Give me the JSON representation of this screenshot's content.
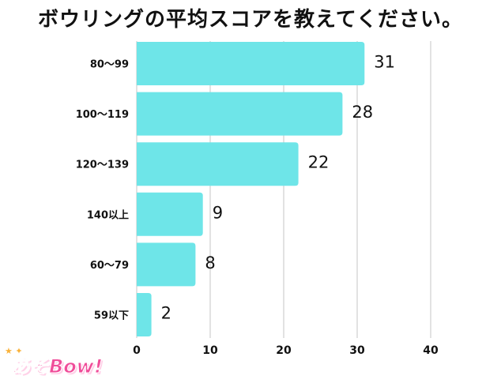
{
  "title": "ボウリングの平均スコアを教えてください。",
  "logo": {
    "text": "あそBow!",
    "stars": "★ ✦"
  },
  "colors": {
    "bar": "#6ee5e8",
    "grid": "#d9d9d9",
    "text": "#111111"
  },
  "chart_data": {
    "type": "bar",
    "orientation": "horizontal",
    "title": "ボウリングの平均スコアを教えてください。",
    "categories": [
      "80〜99",
      "100〜119",
      "120〜139",
      "140以上",
      "60〜79",
      "59以下"
    ],
    "values": [
      31,
      28,
      22,
      9,
      8,
      2
    ],
    "xlim": [
      0,
      40
    ],
    "xticks": [
      0,
      10,
      20,
      30,
      40
    ],
    "grid": true,
    "xlabel": "",
    "ylabel": ""
  }
}
